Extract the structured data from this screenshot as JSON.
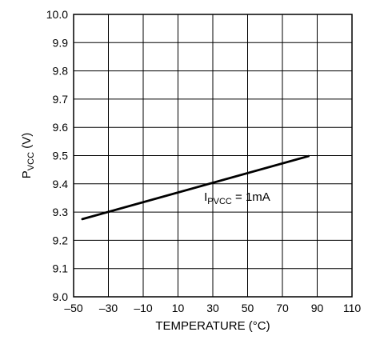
{
  "chart_data": {
    "type": "line",
    "xlabel": "TEMPERATURE (°C)",
    "ylabel": {
      "main": "P",
      "sub": "VCC",
      "suffix": " (V)"
    },
    "xlim": [
      -50,
      110
    ],
    "ylim": [
      9.0,
      10.0
    ],
    "x_ticks": [
      -50,
      -30,
      -10,
      10,
      30,
      50,
      70,
      90,
      110
    ],
    "x_tick_labels": [
      "–50",
      "–30",
      "–10",
      "10",
      "30",
      "50",
      "70",
      "90",
      "110"
    ],
    "y_ticks": [
      9.0,
      9.1,
      9.2,
      9.3,
      9.4,
      9.5,
      9.6,
      9.7,
      9.8,
      9.9,
      10.0
    ],
    "y_tick_labels": [
      "9.0",
      "9.1",
      "9.2",
      "9.3",
      "9.4",
      "9.5",
      "9.6",
      "9.7",
      "9.8",
      "9.9",
      "10.0"
    ],
    "grid": true,
    "series": [
      {
        "x": [
          -45,
          85
        ],
        "y": [
          9.275,
          9.498
        ],
        "color": "#000000"
      }
    ],
    "annotation": {
      "main": "I",
      "sub": "PVCC",
      "suffix": " = 1mA",
      "x": 25,
      "y": 9.34
    }
  }
}
